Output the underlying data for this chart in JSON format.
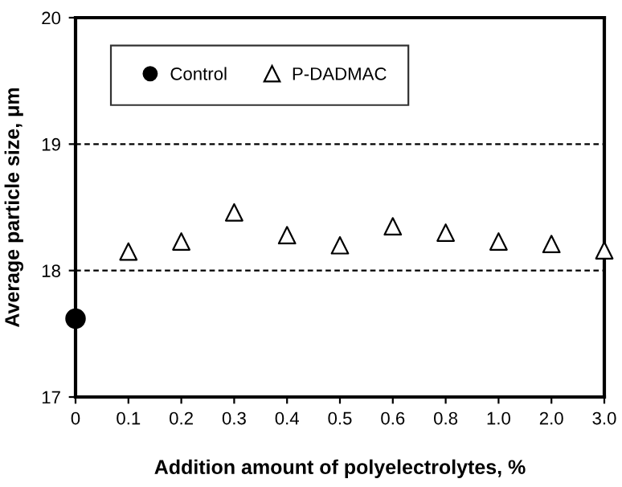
{
  "chart_data": {
    "type": "scatter",
    "xlabel": "Addition amount of polyelectrolytes, %",
    "ylabel": "Average particle size, μm",
    "categories": [
      "0",
      "0.1",
      "0.2",
      "0.3",
      "0.4",
      "0.5",
      "0.6",
      "0.8",
      "1.0",
      "2.0",
      "3.0"
    ],
    "series": [
      {
        "name": "Control",
        "color": "#000000",
        "marker": "circle",
        "values": [
          17.62,
          null,
          null,
          null,
          null,
          null,
          null,
          null,
          null,
          null,
          null
        ]
      },
      {
        "name": "P-DADMAC",
        "color": "#000000",
        "marker": "triangle",
        "values": [
          null,
          18.15,
          18.23,
          18.46,
          18.28,
          18.2,
          18.35,
          18.3,
          18.23,
          18.21,
          18.16
        ]
      }
    ],
    "ylim": [
      17,
      20
    ],
    "yticks": [
      17,
      18,
      19,
      20
    ],
    "grid": "y",
    "legend": "top left"
  }
}
